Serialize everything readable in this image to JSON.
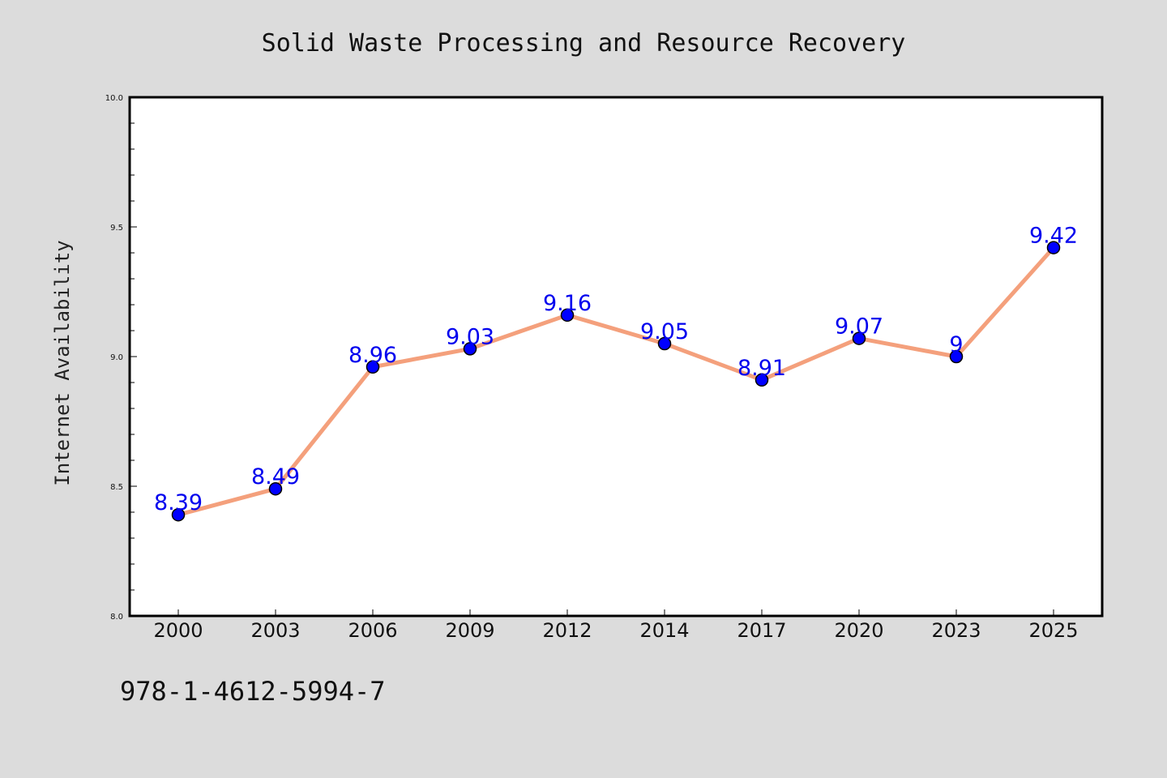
{
  "chart_data": {
    "type": "line",
    "title": "Solid Waste Processing and Resource Recovery",
    "xlabel": "",
    "ylabel": "Internet Availability",
    "categories": [
      "2000",
      "2003",
      "2006",
      "2009",
      "2012",
      "2014",
      "2017",
      "2020",
      "2023",
      "2025"
    ],
    "values": [
      8.39,
      8.49,
      8.96,
      9.03,
      9.16,
      9.05,
      8.91,
      9.07,
      9,
      9.42
    ],
    "data_labels": [
      "8.39",
      "8.49",
      "8.96",
      "9.03",
      "9.16",
      "9.05",
      "8.91",
      "9.07",
      "9",
      "9.42"
    ],
    "ylim": [
      8.0,
      10.0
    ],
    "yticks": [
      "8.0",
      "8.5",
      "9.0",
      "9.5",
      "10.0"
    ],
    "grid": false,
    "legend": "none",
    "colors": {
      "line": "#f4a07c",
      "marker": "#0000ff",
      "marker_edge": "#000000",
      "data_label": "#0000ee",
      "plot_background": "#ffffff",
      "figure_background": "#dcdcdc"
    }
  },
  "footer": {
    "code": "978-1-4612-5994-7"
  }
}
